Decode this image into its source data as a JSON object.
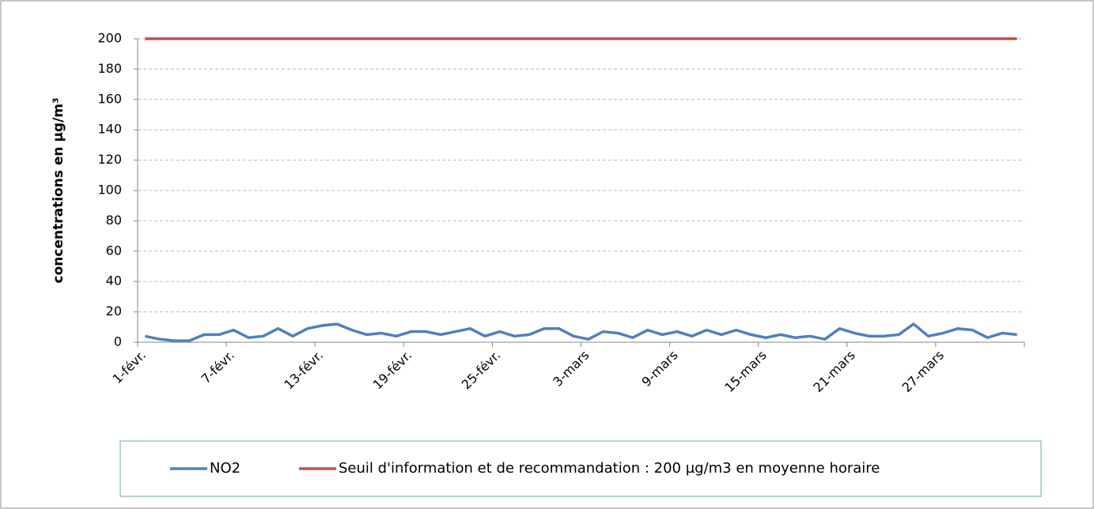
{
  "chart_data": {
    "type": "line",
    "y_label": "concentrations en µg/m³",
    "categories": [
      "1-févr.",
      null,
      null,
      null,
      null,
      null,
      "7-févr.",
      null,
      null,
      null,
      null,
      null,
      "13-févr.",
      null,
      null,
      null,
      null,
      null,
      "19-févr.",
      null,
      null,
      null,
      null,
      null,
      "25-févr.",
      null,
      null,
      null,
      null,
      null,
      "3-mars",
      null,
      null,
      null,
      null,
      null,
      "9-mars",
      null,
      null,
      null,
      null,
      null,
      "15-mars",
      null,
      null,
      null,
      null,
      null,
      "21-mars",
      null,
      null,
      null,
      null,
      null,
      "27-mars",
      null,
      null,
      null,
      null,
      null
    ],
    "series": [
      {
        "name": "NO2",
        "color": "#4f81bd",
        "values": [
          4,
          2,
          1,
          1,
          5,
          5,
          8,
          3,
          4,
          9,
          4,
          9,
          11,
          12,
          8,
          5,
          6,
          4,
          7,
          7,
          5,
          7,
          9,
          4,
          7,
          4,
          5,
          9,
          9,
          4,
          2,
          7,
          6,
          3,
          8,
          5,
          7,
          4,
          8,
          5,
          8,
          5,
          3,
          5,
          3,
          4,
          2,
          9,
          6,
          4,
          4,
          5,
          12,
          4,
          6,
          9,
          8,
          3,
          6,
          5
        ]
      },
      {
        "name": "Seuil d'information et de recommandation : 200 µg/m3 en moyenne horaire",
        "color": "#c0504d",
        "values": [
          200,
          200,
          200,
          200,
          200,
          200,
          200,
          200,
          200,
          200,
          200,
          200,
          200,
          200,
          200,
          200,
          200,
          200,
          200,
          200,
          200,
          200,
          200,
          200,
          200,
          200,
          200,
          200,
          200,
          200,
          200,
          200,
          200,
          200,
          200,
          200,
          200,
          200,
          200,
          200,
          200,
          200,
          200,
          200,
          200,
          200,
          200,
          200,
          200,
          200,
          200,
          200,
          200,
          200,
          200,
          200,
          200,
          200,
          200,
          200
        ]
      }
    ],
    "ylim": [
      0,
      200
    ],
    "yticks": [
      0,
      20,
      40,
      60,
      80,
      100,
      120,
      140,
      160,
      180,
      200
    ],
    "grid": true
  }
}
